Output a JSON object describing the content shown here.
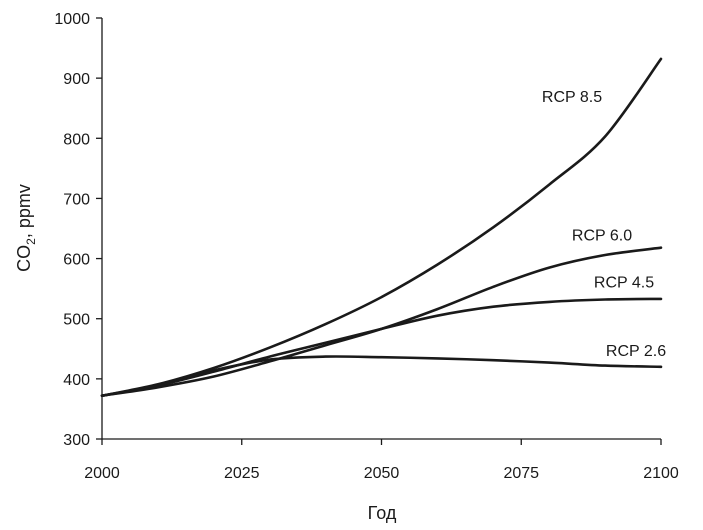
{
  "chart_data": {
    "type": "line",
    "title": "",
    "xlabel": "Год",
    "ylabel": "CO",
    "ylabel_subscript": "2",
    "ylabel_suffix": ", ppmv",
    "xlim": [
      2000,
      2100
    ],
    "ylim": [
      300,
      1000
    ],
    "xticks": [
      2000,
      2025,
      2050,
      2075,
      2100
    ],
    "yticks": [
      300,
      400,
      500,
      600,
      700,
      800,
      900,
      1000
    ],
    "grid": false,
    "legend": "none (direct labels at line ends)",
    "line_color": "#1a1a1a",
    "x": [
      2000,
      2010,
      2020,
      2030,
      2040,
      2050,
      2060,
      2070,
      2080,
      2090,
      2100
    ],
    "series": [
      {
        "name": "RCP 8.5",
        "values": [
          372,
          391,
          418,
          452,
          491,
          536,
          590,
          652,
          723,
          803,
          932
        ]
      },
      {
        "name": "RCP 6.0",
        "values": [
          372,
          386,
          404,
          429,
          456,
          483,
          516,
          553,
          585,
          606,
          618
        ]
      },
      {
        "name": "RCP 4.5",
        "values": [
          372,
          389,
          412,
          437,
          460,
          483,
          505,
          520,
          528,
          532,
          533
        ]
      },
      {
        "name": "RCP 2.6",
        "values": [
          372,
          389,
          414,
          432,
          437,
          436,
          434,
          431,
          427,
          422,
          420
        ]
      }
    ]
  }
}
